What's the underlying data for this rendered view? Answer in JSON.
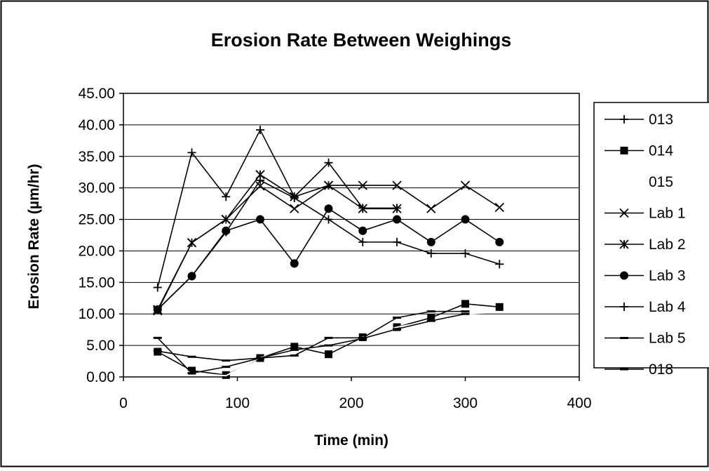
{
  "chart_data": {
    "type": "line",
    "title": "Erosion Rate Between Weighings",
    "xlabel": "Time (min)",
    "ylabel": "Erosion Rate (µm/hr)",
    "xlim": [
      0,
      400
    ],
    "ylim": [
      0,
      45
    ],
    "x_ticks": [
      "0",
      "100",
      "200",
      "300",
      "400"
    ],
    "y_ticks": [
      "0.00",
      "5.00",
      "10.00",
      "15.00",
      "20.00",
      "25.00",
      "30.00",
      "35.00",
      "40.00",
      "45.00"
    ],
    "grid": "horizontal",
    "legend_position": "right",
    "series": [
      {
        "name": "013",
        "marker": "plus",
        "color": "#000000",
        "points": [
          [
            30,
            14.2
          ],
          [
            60,
            35.6
          ],
          [
            90,
            28.6
          ],
          [
            120,
            39.2
          ],
          [
            150,
            28.6
          ],
          [
            180,
            34.0
          ],
          [
            210,
            26.8
          ],
          [
            240,
            26.8
          ]
        ]
      },
      {
        "name": "014",
        "marker": "square",
        "color": "#000000",
        "points": [
          [
            30,
            4.0
          ],
          [
            60,
            1.0
          ],
          [
            90,
            0.3
          ],
          [
            120,
            3.0
          ],
          [
            150,
            4.8
          ],
          [
            180,
            3.6
          ],
          [
            210,
            6.3
          ],
          [
            240,
            7.9
          ],
          [
            270,
            9.4
          ],
          [
            300,
            11.6
          ],
          [
            330,
            11.1
          ]
        ]
      },
      {
        "name": "015",
        "marker": "none",
        "color": "#ffffff",
        "points": [
          [
            30,
            2.8
          ],
          [
            60,
            0.6
          ],
          [
            90,
            0.2
          ],
          [
            120,
            3.1
          ],
          [
            150,
            3.9
          ],
          [
            180,
            5.6
          ],
          [
            210,
            6.3
          ],
          [
            240,
            7.9
          ],
          [
            270,
            8.9
          ],
          [
            300,
            10.0
          ],
          [
            330,
            10.3
          ]
        ]
      },
      {
        "name": "Lab 1",
        "marker": "x",
        "color": "#000000",
        "points": [
          [
            30,
            10.5
          ],
          [
            60,
            21.3
          ],
          [
            90,
            25.0
          ],
          [
            120,
            30.3
          ],
          [
            150,
            26.7
          ],
          [
            180,
            30.4
          ],
          [
            210,
            30.4
          ],
          [
            240,
            30.4
          ],
          [
            270,
            26.7
          ],
          [
            300,
            30.4
          ],
          [
            330,
            26.9
          ]
        ]
      },
      {
        "name": "Lab 2",
        "marker": "asterisk",
        "color": "#000000",
        "points": [
          [
            30,
            10.7
          ],
          [
            60,
            21.3
          ],
          [
            90,
            25.0
          ],
          [
            120,
            32.1
          ],
          [
            150,
            28.6
          ],
          [
            180,
            30.4
          ],
          [
            210,
            26.7
          ],
          [
            240,
            26.7
          ]
        ]
      },
      {
        "name": "Lab 3",
        "marker": "circle",
        "color": "#000000",
        "points": [
          [
            30,
            10.7
          ],
          [
            60,
            16.0
          ],
          [
            90,
            23.2
          ],
          [
            120,
            25.0
          ],
          [
            150,
            18.0
          ],
          [
            180,
            26.7
          ],
          [
            210,
            23.2
          ],
          [
            240,
            25.0
          ],
          [
            270,
            21.4
          ],
          [
            300,
            25.0
          ],
          [
            330,
            21.4
          ]
        ]
      },
      {
        "name": "Lab 4",
        "marker": "plus",
        "color": "#000000",
        "points": [
          [
            30,
            10.7
          ],
          [
            60,
            16.0
          ],
          [
            90,
            23.0
          ],
          [
            120,
            31.2
          ],
          [
            150,
            28.4
          ],
          [
            180,
            25.0
          ],
          [
            210,
            21.4
          ],
          [
            240,
            21.4
          ],
          [
            270,
            19.6
          ],
          [
            300,
            19.6
          ],
          [
            330,
            17.9
          ]
        ]
      },
      {
        "name": "Lab 5",
        "marker": "dash",
        "color": "#000000",
        "points": [
          [
            30,
            6.2
          ],
          [
            60,
            0.6
          ],
          [
            90,
            1.6
          ],
          [
            120,
            3.0
          ],
          [
            150,
            3.4
          ],
          [
            180,
            6.2
          ],
          [
            210,
            6.2
          ],
          [
            240,
            9.4
          ],
          [
            270,
            10.4
          ],
          [
            300,
            10.4
          ]
        ]
      },
      {
        "name": "018",
        "marker": "dash",
        "color": "#000000",
        "points": [
          [
            30,
            4.1
          ],
          [
            60,
            3.2
          ],
          [
            90,
            2.6
          ],
          [
            120,
            3.0
          ],
          [
            150,
            4.3
          ],
          [
            180,
            5.0
          ],
          [
            210,
            6.1
          ],
          [
            240,
            7.6
          ],
          [
            270,
            8.9
          ],
          [
            300,
            10.0
          ]
        ]
      }
    ]
  }
}
